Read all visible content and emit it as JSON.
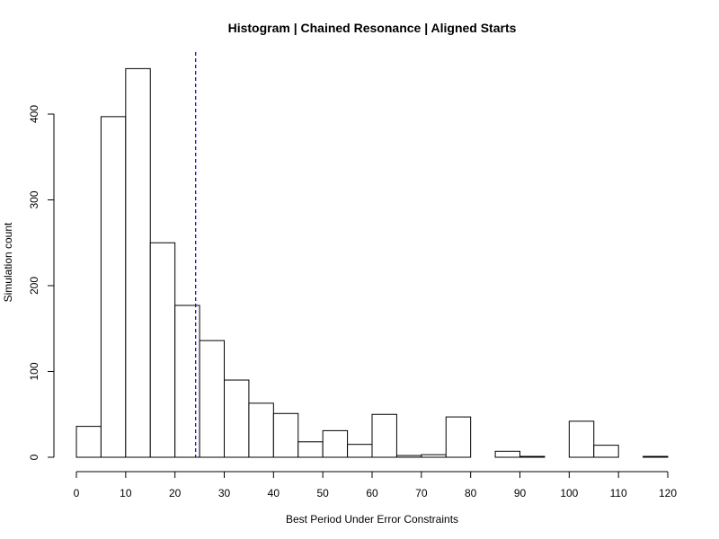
{
  "chart_data": {
    "type": "bar",
    "title": "Histogram | Chained Resonance | Aligned Starts",
    "xlabel": "Best Period Under Error Constraints",
    "ylabel": "Simulation count",
    "bin_width": 5,
    "bins": [
      {
        "start": 0,
        "end": 5,
        "value": 36
      },
      {
        "start": 5,
        "end": 10,
        "value": 397
      },
      {
        "start": 10,
        "end": 15,
        "value": 453
      },
      {
        "start": 15,
        "end": 20,
        "value": 250
      },
      {
        "start": 20,
        "end": 25,
        "value": 177
      },
      {
        "start": 25,
        "end": 30,
        "value": 136
      },
      {
        "start": 30,
        "end": 35,
        "value": 90
      },
      {
        "start": 35,
        "end": 40,
        "value": 63
      },
      {
        "start": 40,
        "end": 45,
        "value": 51
      },
      {
        "start": 45,
        "end": 50,
        "value": 18
      },
      {
        "start": 50,
        "end": 55,
        "value": 31
      },
      {
        "start": 55,
        "end": 60,
        "value": 15
      },
      {
        "start": 60,
        "end": 65,
        "value": 50
      },
      {
        "start": 65,
        "end": 70,
        "value": 2
      },
      {
        "start": 70,
        "end": 75,
        "value": 3
      },
      {
        "start": 75,
        "end": 80,
        "value": 47
      },
      {
        "start": 80,
        "end": 85,
        "value": 0
      },
      {
        "start": 85,
        "end": 90,
        "value": 7
      },
      {
        "start": 90,
        "end": 95,
        "value": 1
      },
      {
        "start": 95,
        "end": 100,
        "value": 0
      },
      {
        "start": 100,
        "end": 105,
        "value": 42
      },
      {
        "start": 105,
        "end": 110,
        "value": 14
      },
      {
        "start": 110,
        "end": 115,
        "value": 0
      },
      {
        "start": 115,
        "end": 120,
        "value": 1
      }
    ],
    "xlim": [
      0,
      120
    ],
    "ylim": [
      0,
      470
    ],
    "x_ticks": [
      "0",
      "10",
      "20",
      "30",
      "40",
      "50",
      "60",
      "70",
      "80",
      "90",
      "100",
      "110",
      "120"
    ],
    "y_ticks": [
      "0",
      "100",
      "200",
      "300",
      "400"
    ],
    "reference_line": {
      "x": 24.2,
      "color": "#0000cc",
      "style": "dashed"
    },
    "grid": false,
    "legend": "none"
  }
}
